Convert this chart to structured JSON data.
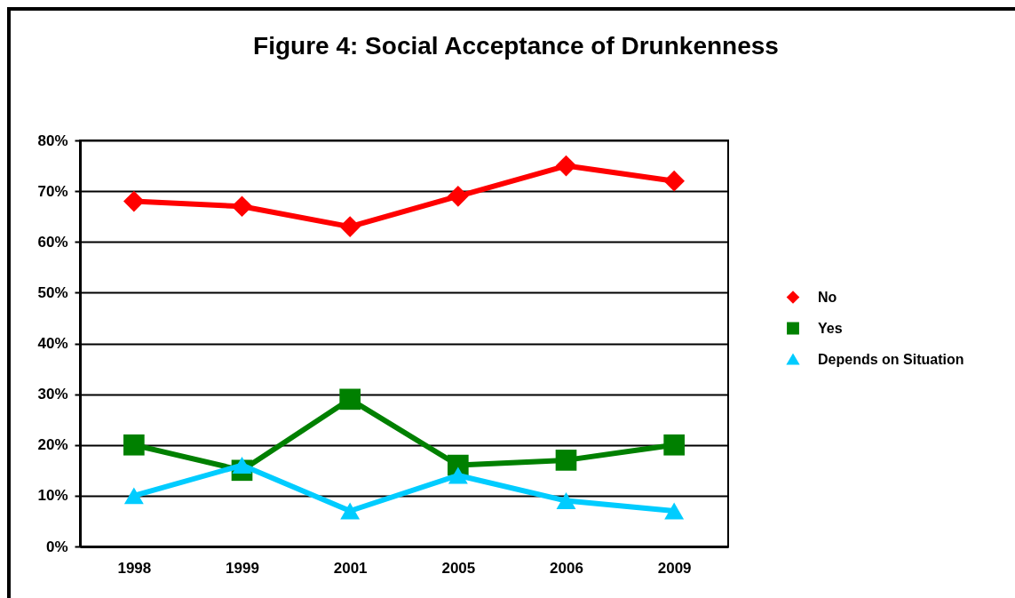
{
  "chart_data": {
    "type": "line",
    "title": "Figure 4: Social Acceptance of Drunkenness",
    "categories": [
      "1998",
      "1999",
      "2001",
      "2005",
      "2006",
      "2009"
    ],
    "series": [
      {
        "name": "No",
        "color": "#ff0000",
        "marker": "diamond",
        "values": [
          68,
          67,
          63,
          69,
          75,
          72
        ]
      },
      {
        "name": "Yes",
        "color": "#008000",
        "marker": "square",
        "values": [
          20,
          15,
          29,
          16,
          17,
          20
        ]
      },
      {
        "name": "Depends on Situation",
        "color": "#00ccff",
        "marker": "triangle",
        "values": [
          10,
          16,
          7,
          14,
          9,
          7
        ]
      }
    ],
    "ylim": [
      0,
      80
    ],
    "yticks": [
      {
        "value": 0,
        "label": "0%"
      },
      {
        "value": 10,
        "label": "10%"
      },
      {
        "value": 20,
        "label": "20%"
      },
      {
        "value": 30,
        "label": "30%"
      },
      {
        "value": 40,
        "label": "40%"
      },
      {
        "value": 50,
        "label": "50%"
      },
      {
        "value": 60,
        "label": "60%"
      },
      {
        "value": 70,
        "label": "70%"
      },
      {
        "value": 80,
        "label": "80%"
      }
    ],
    "grid": "y",
    "legend": "right"
  }
}
